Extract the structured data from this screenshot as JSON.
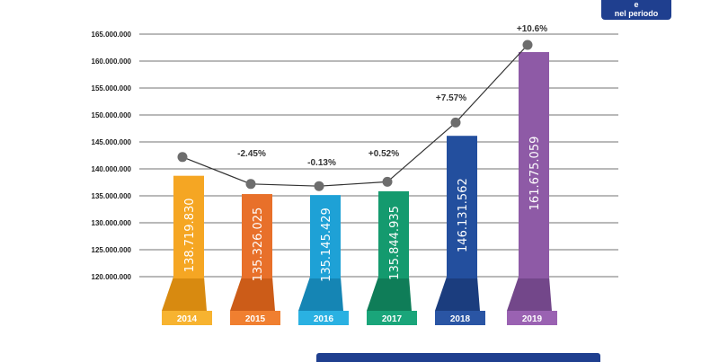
{
  "badge": {
    "line1": "e",
    "line2": "nel periodo"
  },
  "chart_data": {
    "type": "bar",
    "title": "",
    "xlabel": "",
    "ylabel": "",
    "ylim": [
      117500000,
      165000000
    ],
    "y_ticks": [
      "120.000.000",
      "125.000.000",
      "130.000.000",
      "135.000.000",
      "140.000.000",
      "145.000.000",
      "150.000.000",
      "155.000.000",
      "160.000.000",
      "165.000.000"
    ],
    "y_tick_values": [
      120000000,
      125000000,
      130000000,
      135000000,
      140000000,
      145000000,
      150000000,
      155000000,
      160000000,
      165000000
    ],
    "grid": true,
    "categories": [
      "2014",
      "2015",
      "2016",
      "2017",
      "2018",
      "2019"
    ],
    "values": [
      138719830,
      135326025,
      135145429,
      135844935,
      146131562,
      161675059
    ],
    "value_labels": [
      "138.719.830",
      "135.326.025",
      "135.145.429",
      "135.844.935",
      "146.131.562",
      "161.675.059"
    ],
    "line_points": [
      142200000,
      137200000,
      136800000,
      137600000,
      148600000,
      163000000
    ],
    "change_labels": [
      "",
      "-2.45%",
      "-0.13%",
      "+0.52%",
      "+7.57%",
      "+10.6%"
    ],
    "colors": {
      "bars": [
        "#f5a623",
        "#e8702a",
        "#1ea1d6",
        "#149a6e",
        "#234f9e",
        "#8e5aa6"
      ],
      "bases": [
        "#f7b330",
        "#f07f30",
        "#2ab1e2",
        "#1aa57a",
        "#2a55a4",
        "#9a62b2"
      ],
      "base_dark": [
        "#d88a10",
        "#cc5c18",
        "#1585b4",
        "#0f7d58",
        "#1b3d7e",
        "#73478a"
      ],
      "line": "#333333",
      "point": "#6d6d6d",
      "grid": "#444444",
      "badge": "#1f3f8f"
    }
  }
}
